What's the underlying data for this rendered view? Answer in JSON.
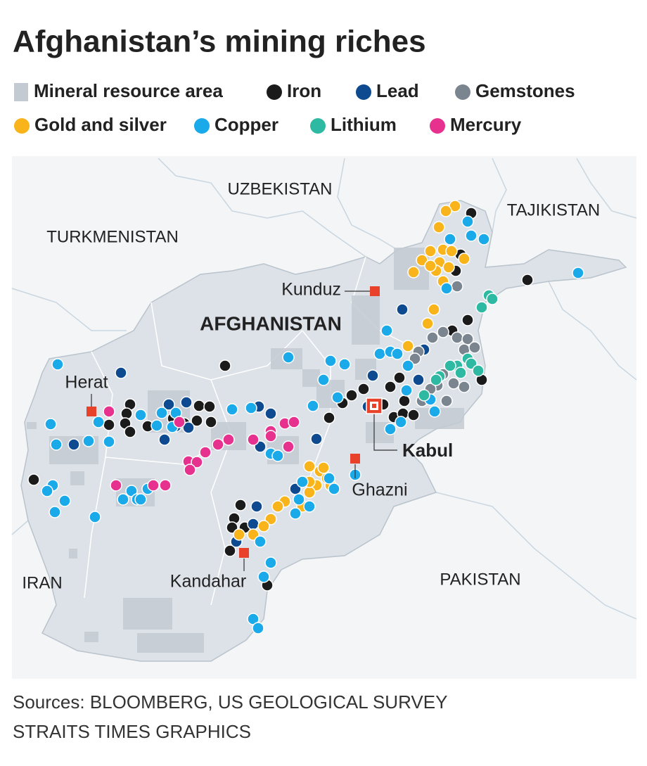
{
  "title": "Afghanistan’s mining riches",
  "legend": [
    {
      "label": "Mineral resource area",
      "color": "#c3cad1"
    },
    {
      "label": "Iron",
      "color": "#1b1b1b"
    },
    {
      "label": "Lead",
      "color": "#0d4a90"
    },
    {
      "label": "Gemstones",
      "color": "#7a858f"
    },
    {
      "label": "Gold and silver",
      "color": "#f8b41a"
    },
    {
      "label": "Copper",
      "color": "#1aa9e9"
    },
    {
      "label": "Lithium",
      "color": "#2db9a2"
    },
    {
      "label": "Mercury",
      "color": "#e6318f"
    }
  ],
  "countries": [
    "UZBEKISTAN",
    "TURKMENISTAN",
    "TAJIKISTAN",
    "IRAN",
    "PAKISTAN"
  ],
  "country": "AFGHANISTAN",
  "cities": [
    "Kunduz",
    "Herat",
    "Ghazni",
    "Kandahar"
  ],
  "capital": "Kabul",
  "sources": [
    "Sources: BLOOMBERG, US GEOLOGICAL SURVEY",
    "STRAITS TIMES GRAPHICS"
  ]
}
